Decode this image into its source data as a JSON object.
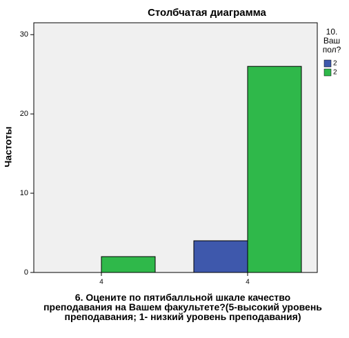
{
  "chart_data": {
    "type": "bar",
    "title": "Столбчатая диаграмма",
    "x_label": "6. Оцените по пятибалльной шкале качество преподавания на Вашем факультете?(5-высокий уровень преподавания; 1- низкий уровень преподавания)",
    "y_label": "Частоты",
    "legend_title": "10. Ваш пол?",
    "categories": [
      "4",
      "4"
    ],
    "series": [
      {
        "name": "2",
        "color": "#3e58ac",
        "values": [
          0,
          4
        ]
      },
      {
        "name": "2",
        "color": "#2fb84a",
        "values": [
          2,
          26
        ]
      }
    ],
    "ylim": [
      0,
      31.5
    ],
    "yticks": [
      0,
      10,
      20,
      30
    ],
    "grid": false,
    "legend": "right"
  }
}
